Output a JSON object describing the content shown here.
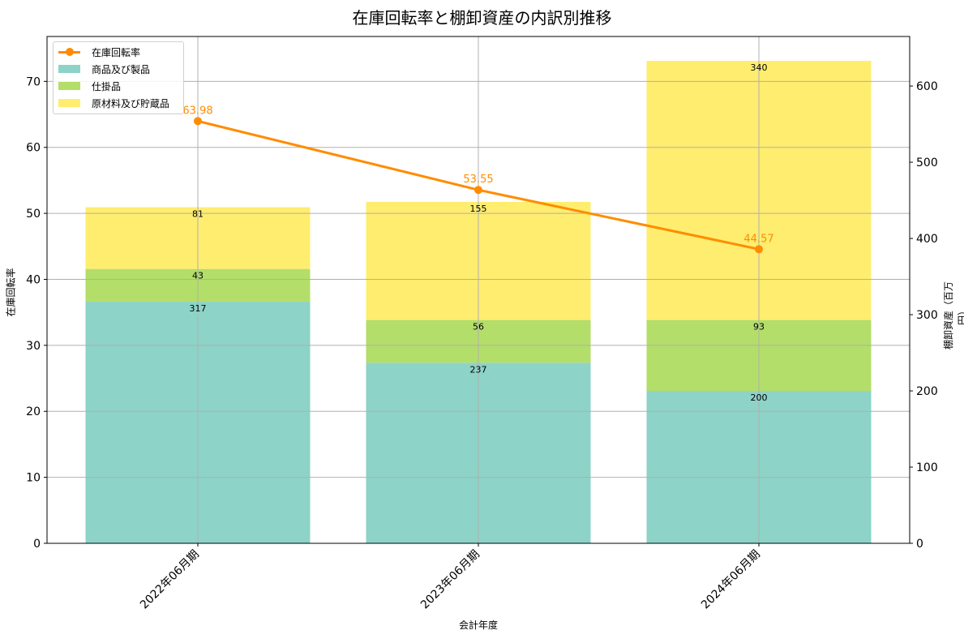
{
  "chart_data": {
    "type": "bar",
    "title": "在庫回転率と棚卸資産の内訳別推移",
    "xlabel": "会計年度",
    "ylabel_left": "在庫回転率",
    "ylabel_right": "棚卸資産（百万円）",
    "categories": [
      "2022年06月期",
      "2023年06月期",
      "2024年06月期"
    ],
    "stacked": true,
    "series": [
      {
        "name": "商品及び製品",
        "axis": "right",
        "type": "bar",
        "color": "#8DD3C7",
        "values": [
          317,
          237,
          200
        ]
      },
      {
        "name": "仕掛品",
        "axis": "right",
        "type": "bar",
        "color": "#B3DE69",
        "values": [
          43,
          56,
          93
        ]
      },
      {
        "name": "原材料及び貯蔵品",
        "axis": "right",
        "type": "bar",
        "color": "#FFED6F",
        "values": [
          81,
          155,
          340
        ]
      },
      {
        "name": "在庫回転率",
        "axis": "left",
        "type": "line",
        "color": "#FF8C00",
        "values": [
          63.98,
          53.55,
          44.57
        ]
      }
    ],
    "ylim_left": [
      0,
      76.8
    ],
    "ylim_right": [
      0,
      665
    ],
    "yticks_left": [
      0,
      10,
      20,
      30,
      40,
      50,
      60,
      70
    ],
    "yticks_right": [
      0,
      100,
      200,
      300,
      400,
      500,
      600
    ],
    "grid": true,
    "legend_position": "upper left"
  },
  "legend": {
    "items": [
      "在庫回転率",
      "商品及び製品",
      "仕掛品",
      "原材料及び貯蔵品"
    ]
  }
}
